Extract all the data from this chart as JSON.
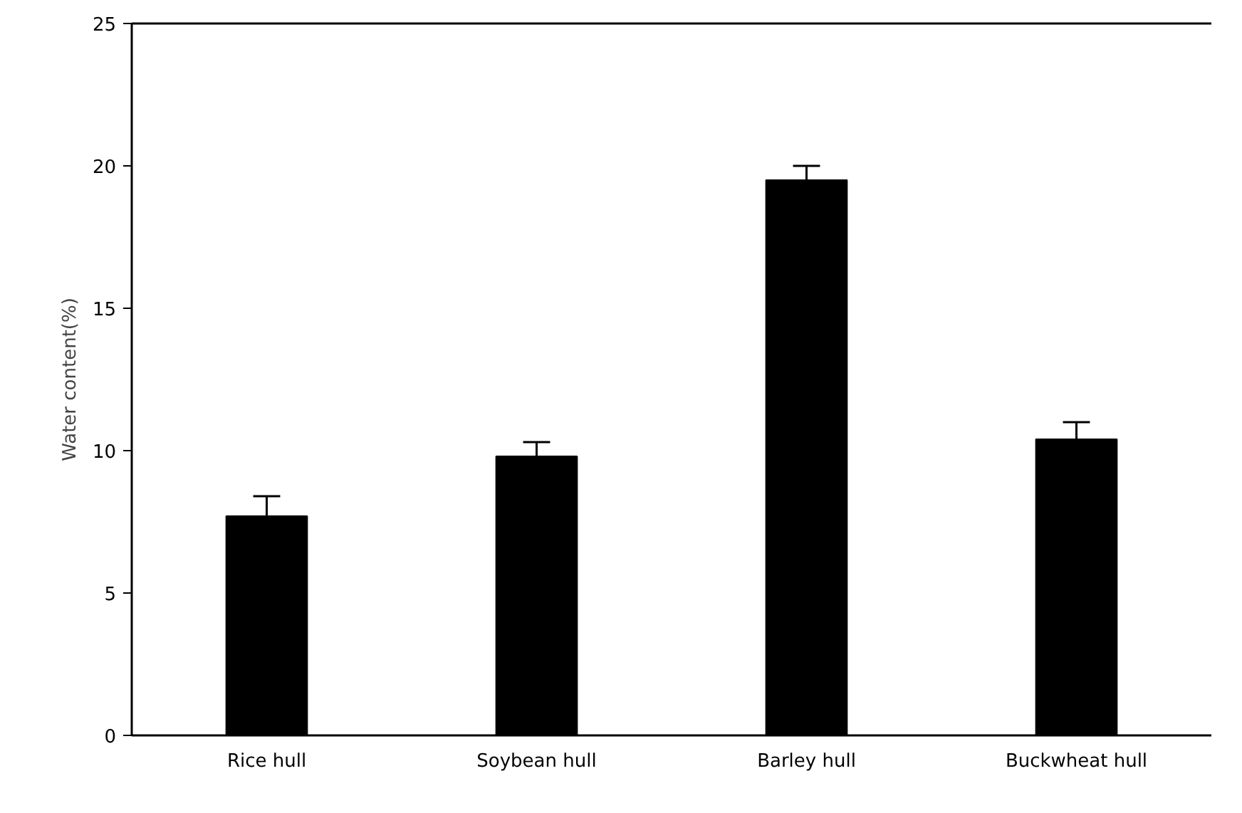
{
  "chart_data": {
    "type": "bar",
    "ylabel": "Water content(%)",
    "categories": [
      "Rice hull",
      "Soybean hull",
      "Barley hull",
      "Buckwheat hull"
    ],
    "values": [
      7.7,
      9.8,
      19.5,
      10.4
    ],
    "errors": [
      [
        7.7,
        8.4
      ],
      [
        9.8,
        10.3
      ],
      [
        19.5,
        20.0
      ],
      [
        10.4,
        11.0
      ]
    ],
    "color": "#000000",
    "ylim": [
      0,
      25
    ],
    "yticks": [
      0,
      5,
      10,
      15,
      20,
      25
    ],
    "grid": false
  }
}
